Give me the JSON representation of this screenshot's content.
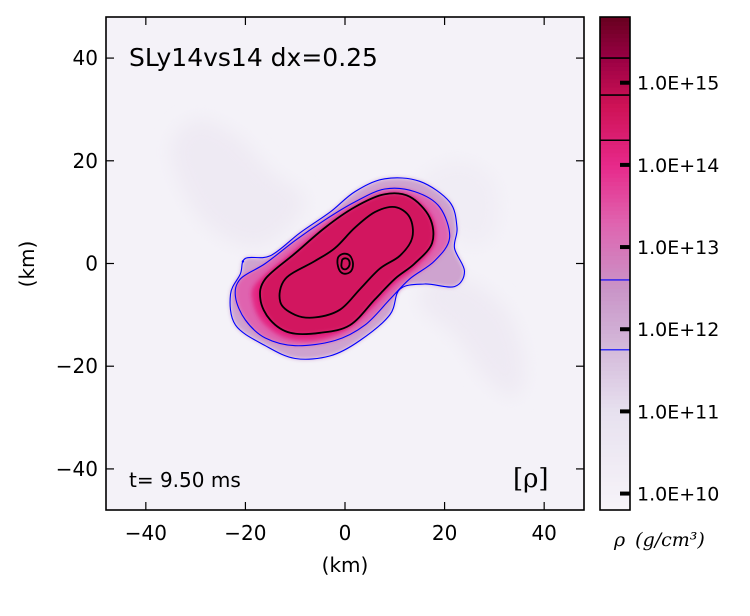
{
  "chart_data": {
    "type": "heatmap",
    "title": "SLy14vs14 dx=0.25",
    "time_label": "t= 9.50 ms",
    "field_label": "[ρ]",
    "xlabel": "(km)",
    "ylabel": "(km)",
    "xlim": [
      -48,
      48
    ],
    "ylim": [
      -48,
      48
    ],
    "xticks": [
      -40,
      -20,
      0,
      20,
      40
    ],
    "yticks": [
      -40,
      -20,
      0,
      20,
      40
    ],
    "xtick_labels": [
      "−40",
      "−20",
      "0",
      "20",
      "40"
    ],
    "ytick_labels": [
      "−40",
      "−20",
      "0",
      "20",
      "40"
    ],
    "colorbar": {
      "label_symbol": "ρ",
      "label_units": "(g/cm³)",
      "scale": "log10",
      "range_log": [
        9.8,
        15.8
      ],
      "tick_values_log": [
        10,
        11,
        12,
        13,
        14,
        15
      ],
      "tick_labels": [
        "1.0E+10",
        "1.0E+11",
        "1.0E+12",
        "1.0E+13",
        "1.0E+14",
        "1.0E+15"
      ],
      "contour_levels_log": [
        {
          "value": 11.75,
          "color": "#0000ff"
        },
        {
          "value": 12.6,
          "color": "#0000ff"
        },
        {
          "value": 14.3,
          "color": "#000000"
        },
        {
          "value": 14.85,
          "color": "#000000"
        },
        {
          "value": 15.3,
          "color": "#000000"
        }
      ]
    },
    "contours": [
      {
        "level": "blue-outer",
        "color": "#0000ff",
        "points": [
          [
            -20,
            1
          ],
          [
            -15,
            1.5
          ],
          [
            -9,
            6
          ],
          [
            -3,
            10
          ],
          [
            2,
            14
          ],
          [
            8,
            16.5
          ],
          [
            15,
            16
          ],
          [
            21,
            12
          ],
          [
            22.5,
            7
          ],
          [
            22,
            3
          ],
          [
            24,
            -1.5
          ],
          [
            22,
            -4.5
          ],
          [
            16,
            -4
          ],
          [
            11,
            -5
          ],
          [
            9,
            -10
          ],
          [
            3,
            -15
          ],
          [
            -3,
            -18
          ],
          [
            -10,
            -18.5
          ],
          [
            -16,
            -16
          ],
          [
            -22,
            -12
          ],
          [
            -23,
            -6
          ],
          [
            -21,
            -2
          ]
        ]
      },
      {
        "level": "blue-inner",
        "color": "#0000ff",
        "points": [
          [
            -21,
            -3
          ],
          [
            -16,
            0
          ],
          [
            -10,
            4.5
          ],
          [
            -4,
            8.5
          ],
          [
            2,
            12
          ],
          [
            8,
            14.5
          ],
          [
            14,
            14
          ],
          [
            19,
            11
          ],
          [
            21,
            5
          ],
          [
            18,
            0.5
          ],
          [
            13,
            -3
          ],
          [
            9,
            -7
          ],
          [
            4,
            -12
          ],
          [
            -2,
            -15
          ],
          [
            -10,
            -16
          ],
          [
            -16,
            -14.5
          ],
          [
            -20,
            -11
          ],
          [
            -22,
            -6.5
          ]
        ]
      },
      {
        "level": "black-outer",
        "color": "#000000",
        "points": [
          [
            -16,
            -3
          ],
          [
            -10,
            2
          ],
          [
            -4,
            7
          ],
          [
            2,
            11
          ],
          [
            8,
            13.5
          ],
          [
            13,
            13
          ],
          [
            17,
            9
          ],
          [
            17.5,
            4
          ],
          [
            14,
            0
          ],
          [
            10,
            -3
          ],
          [
            6,
            -7
          ],
          [
            1,
            -12
          ],
          [
            -5,
            -13.5
          ],
          [
            -11,
            -13.5
          ],
          [
            -15,
            -11
          ],
          [
            -17,
            -7
          ]
        ]
      },
      {
        "level": "black-inner",
        "color": "#000000",
        "points": [
          [
            -12,
            -3
          ],
          [
            -6,
            0.5
          ],
          [
            -2,
            3
          ],
          [
            2,
            7
          ],
          [
            6,
            10
          ],
          [
            10,
            11
          ],
          [
            13,
            9
          ],
          [
            13.5,
            5
          ],
          [
            11,
            1.5
          ],
          [
            7,
            -1
          ],
          [
            3,
            -5
          ],
          [
            -1,
            -9
          ],
          [
            -6,
            -10.5
          ],
          [
            -10,
            -10
          ],
          [
            -13,
            -7.5
          ]
        ]
      },
      {
        "level": "black-core-outer",
        "color": "#000000",
        "points": [
          [
            -1.5,
            0
          ],
          [
            -1.3,
            1.3
          ],
          [
            -0.2,
            1.9
          ],
          [
            1,
            1.5
          ],
          [
            1.6,
            0
          ],
          [
            1.2,
            -1.5
          ],
          [
            0,
            -2
          ],
          [
            -1,
            -1.5
          ]
        ]
      },
      {
        "level": "black-core-inner",
        "color": "#000000",
        "points": [
          [
            -0.7,
            0
          ],
          [
            -0.5,
            0.8
          ],
          [
            0.2,
            1
          ],
          [
            0.8,
            0.6
          ],
          [
            0.9,
            -0.3
          ],
          [
            0.4,
            -1
          ],
          [
            -0.3,
            -1.1
          ],
          [
            -0.7,
            -0.6
          ]
        ]
      }
    ],
    "density_regions": [
      {
        "name": "diffuse-halo-nw",
        "log_rho": 10.6,
        "points": [
          [
            -35,
            22
          ],
          [
            -30,
            28
          ],
          [
            -22,
            25
          ],
          [
            -15,
            18
          ],
          [
            -8,
            12
          ],
          [
            -15,
            4
          ],
          [
            -22,
            4
          ],
          [
            -30,
            10
          ]
        ]
      },
      {
        "name": "diffuse-halo-se",
        "log_rho": 10.6,
        "points": [
          [
            18,
            -2
          ],
          [
            26,
            -4
          ],
          [
            33,
            -10
          ],
          [
            36,
            -20
          ],
          [
            34,
            -26
          ],
          [
            28,
            -22
          ],
          [
            22,
            -14
          ],
          [
            15,
            -8
          ]
        ]
      },
      {
        "name": "diffuse-halo-ne",
        "log_rho": 10.4,
        "points": [
          [
            14,
            14
          ],
          [
            22,
            20
          ],
          [
            30,
            16
          ],
          [
            30,
            6
          ],
          [
            24,
            4
          ]
        ]
      },
      {
        "name": "low-density-envelope",
        "log_rho": 12.2,
        "points": [
          [
            -20,
            1
          ],
          [
            -15,
            1.5
          ],
          [
            -9,
            6
          ],
          [
            -3,
            10
          ],
          [
            2,
            14
          ],
          [
            8,
            16.5
          ],
          [
            15,
            16
          ],
          [
            21,
            12
          ],
          [
            22.5,
            7
          ],
          [
            22,
            3
          ],
          [
            24,
            -1.5
          ],
          [
            22,
            -4.5
          ],
          [
            16,
            -4
          ],
          [
            11,
            -5
          ],
          [
            9,
            -10
          ],
          [
            3,
            -15
          ],
          [
            -3,
            -18
          ],
          [
            -10,
            -18.5
          ],
          [
            -16,
            -16
          ],
          [
            -22,
            -12
          ],
          [
            -23,
            -6
          ],
          [
            -21,
            -2
          ]
        ]
      },
      {
        "name": "mid-density-envelope",
        "log_rho": 13.3,
        "points": [
          [
            -21,
            -3
          ],
          [
            -16,
            0
          ],
          [
            -10,
            4.5
          ],
          [
            -4,
            8.5
          ],
          [
            2,
            12
          ],
          [
            8,
            14.5
          ],
          [
            14,
            14
          ],
          [
            19,
            11
          ],
          [
            21,
            5
          ],
          [
            18,
            0.5
          ],
          [
            13,
            -3
          ],
          [
            9,
            -7
          ],
          [
            4,
            -12
          ],
          [
            -2,
            -15
          ],
          [
            -10,
            -16
          ],
          [
            -16,
            -14.5
          ],
          [
            -20,
            -11
          ],
          [
            -22,
            -6.5
          ]
        ]
      },
      {
        "name": "merger-body",
        "log_rho": 14.1,
        "points": [
          [
            -18,
            -4
          ],
          [
            -12,
            1
          ],
          [
            -5,
            6.5
          ],
          [
            1,
            10.5
          ],
          [
            7,
            13
          ],
          [
            13,
            13
          ],
          [
            17.5,
            9
          ],
          [
            18,
            4
          ],
          [
            14.5,
            -0.5
          ],
          [
            10,
            -4
          ],
          [
            5.5,
            -8.5
          ],
          [
            0,
            -13
          ],
          [
            -6,
            -15
          ],
          [
            -12,
            -14.5
          ],
          [
            -16.5,
            -11.5
          ],
          [
            -18.5,
            -7.5
          ]
        ]
      },
      {
        "name": "dense-core",
        "log_rho": 14.6,
        "points": [
          [
            -16,
            -3
          ],
          [
            -10,
            2
          ],
          [
            -4,
            7
          ],
          [
            2,
            11
          ],
          [
            8,
            13.5
          ],
          [
            13,
            13
          ],
          [
            17,
            9
          ],
          [
            17.5,
            4
          ],
          [
            14,
            0
          ],
          [
            10,
            -3
          ],
          [
            6,
            -7
          ],
          [
            1,
            -12
          ],
          [
            -5,
            -13.5
          ],
          [
            -11,
            -13.5
          ],
          [
            -15,
            -11
          ],
          [
            -17,
            -7
          ]
        ]
      }
    ]
  }
}
